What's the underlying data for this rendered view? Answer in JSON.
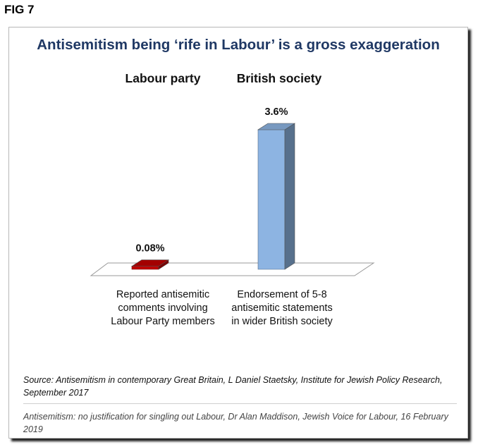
{
  "figure_label": "FIG 7",
  "chart_data": {
    "type": "bar",
    "title": "Antisemitism being ‘rife in Labour’ is a gross exaggeration",
    "group_headers": [
      "Labour party",
      "British society"
    ],
    "categories": [
      "Reported antisemitic comments involving Labour Party members",
      "Endorsement of 5-8 antisemitic statements in wider British society"
    ],
    "category_lines": [
      [
        "Reported antisemitic",
        "comments involving",
        "Labour Party members"
      ],
      [
        "Endorsement of 5-8",
        "antisemitic statements",
        "in wider British society"
      ]
    ],
    "values": [
      0.08,
      3.6
    ],
    "value_labels": [
      "0.08%",
      "3.6%"
    ],
    "colors": [
      "#c00000",
      "#8db4e2"
    ],
    "ylim": [
      0,
      3.6
    ],
    "style": "3d-column"
  },
  "source_note": "Source:  Antisemitism in contemporary Great Britain, L Daniel Staetsky, Institute for Jewish Policy Research, September 2017",
  "credit_note": "Antisemitism: no justification for singling out Labour, Dr Alan Maddison, Jewish Voice for Labour, 16 February 2019"
}
